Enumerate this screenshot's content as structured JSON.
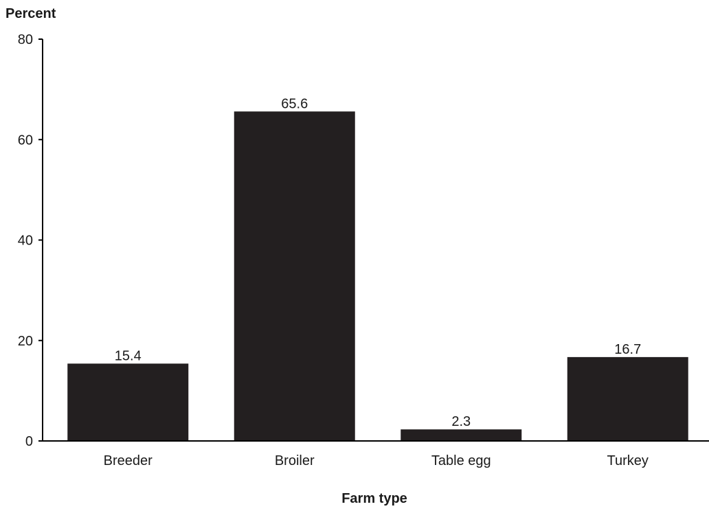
{
  "chart_data": {
    "type": "bar",
    "title": "",
    "ylabel": "Percent",
    "xlabel": "Farm type",
    "categories": [
      "Breeder",
      "Broiler",
      "Table egg",
      "Turkey"
    ],
    "values": [
      15.4,
      65.6,
      2.3,
      16.7
    ],
    "data_labels": [
      "15.4",
      "65.6",
      "2.3",
      "16.7"
    ],
    "y_ticks": [
      0,
      20,
      40,
      60,
      80
    ],
    "ylim": [
      0,
      80
    ],
    "grid": false,
    "legend": "none",
    "bar_color": "#231f20",
    "axis_color": "#000000"
  }
}
